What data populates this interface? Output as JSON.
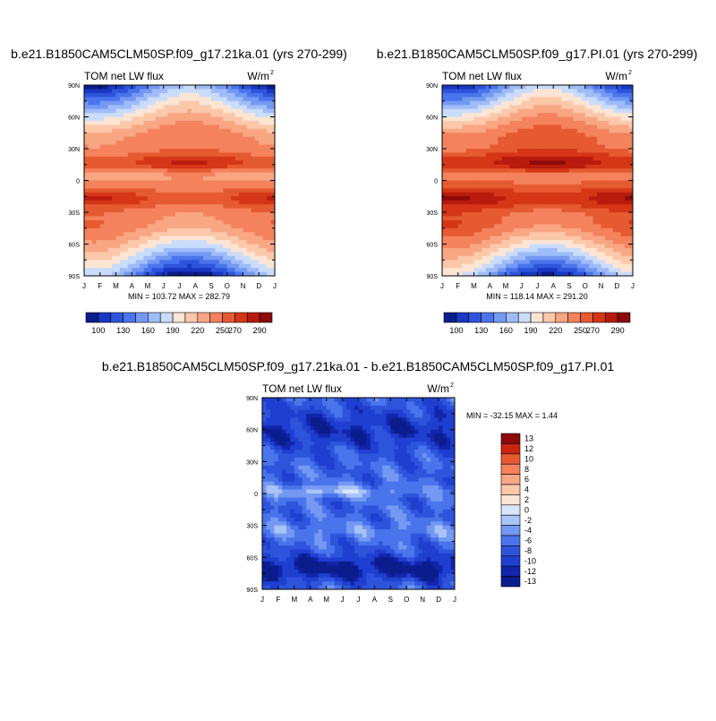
{
  "colors": {
    "abs_levels": [
      "#0b1c8c",
      "#1837c2",
      "#2f54dc",
      "#4a74ec",
      "#7499f2",
      "#9fbcf7",
      "#cadcfb",
      "#fde5d4",
      "#fcc8aa",
      "#f9a683",
      "#f4825d",
      "#e65a32",
      "#d43617",
      "#b81b0d",
      "#8c0a0a"
    ],
    "diff_levels": [
      "#0b1c8c",
      "#1126aa",
      "#1f3fd0",
      "#2f54dc",
      "#4a74ec",
      "#7499f2",
      "#a8c3f7",
      "#d8e6fc",
      "#fde5d4",
      "#fcc8aa",
      "#f9a683",
      "#f4825d",
      "#e65a32",
      "#c9250f",
      "#8c0a0a"
    ]
  },
  "chart_data": [
    {
      "type": "heatmap",
      "title": "b.e21.B1850CAM5CLM50SP.f09_g17.21ka.01 (yrs 270-299)",
      "variable_label": "TOM net LW flux",
      "units": "W/m",
      "units_exp": "2",
      "stats_text": "MIN = 103.72 MAX = 282.79",
      "min": 103.72,
      "max": 282.79,
      "xticks": [
        "J",
        "F",
        "M",
        "A",
        "M",
        "J",
        "J",
        "A",
        "S",
        "O",
        "N",
        "D",
        "J"
      ],
      "yticks": [
        "90N",
        "60N",
        "30N",
        "0",
        "30S",
        "60S",
        "90S"
      ],
      "ylim": [
        -90,
        90
      ],
      "colorbar_orientation": "horizontal",
      "colorbar_labels": [
        "100",
        "130",
        "160",
        "190",
        "220",
        "250",
        "270",
        "290"
      ],
      "colorbar_levels": [
        100,
        130,
        160,
        190,
        220,
        250,
        270,
        290
      ]
    },
    {
      "type": "heatmap",
      "title": "b.e21.B1850CAM5CLM50SP.f09_g17.PI.01 (yrs 270-299)",
      "variable_label": "TOM net LW flux",
      "units": "W/m",
      "units_exp": "2",
      "stats_text": "MIN = 118.14 MAX = 291.20",
      "min": 118.14,
      "max": 291.2,
      "xticks": [
        "J",
        "F",
        "M",
        "A",
        "M",
        "J",
        "J",
        "A",
        "S",
        "O",
        "N",
        "D",
        "J"
      ],
      "yticks": [
        "90N",
        "60N",
        "30N",
        "0",
        "30S",
        "60S",
        "90S"
      ],
      "ylim": [
        -90,
        90
      ],
      "colorbar_orientation": "horizontal",
      "colorbar_labels": [
        "100",
        "130",
        "160",
        "190",
        "220",
        "250",
        "270",
        "290"
      ],
      "colorbar_levels": [
        100,
        130,
        160,
        190,
        220,
        250,
        270,
        290
      ]
    },
    {
      "type": "heatmap",
      "title": "b.e21.B1850CAM5CLM50SP.f09_g17.21ka.01 - b.e21.B1850CAM5CLM50SP.f09_g17.PI.01",
      "variable_label": "TOM net LW flux",
      "units": "W/m",
      "units_exp": "2",
      "stats_text": "MIN = -32.15 MAX =   1.44",
      "min": -32.15,
      "max": 1.44,
      "xticks": [
        "J",
        "F",
        "M",
        "A",
        "M",
        "J",
        "J",
        "A",
        "S",
        "O",
        "N",
        "D",
        "J"
      ],
      "yticks": [
        "90N",
        "60N",
        "30N",
        "0",
        "30S",
        "60S",
        "90S"
      ],
      "ylim": [
        -90,
        90
      ],
      "colorbar_orientation": "vertical",
      "colorbar_labels": [
        "13",
        "12",
        "10",
        "8",
        "6",
        "4",
        "2",
        "0",
        "-2",
        "-4",
        "-6",
        "-8",
        "-10",
        "-12",
        "-13"
      ],
      "colorbar_levels": [
        13,
        12,
        10,
        8,
        6,
        4,
        2,
        0,
        -2,
        -4,
        -6,
        -8,
        -10,
        -12,
        -13
      ]
    }
  ]
}
